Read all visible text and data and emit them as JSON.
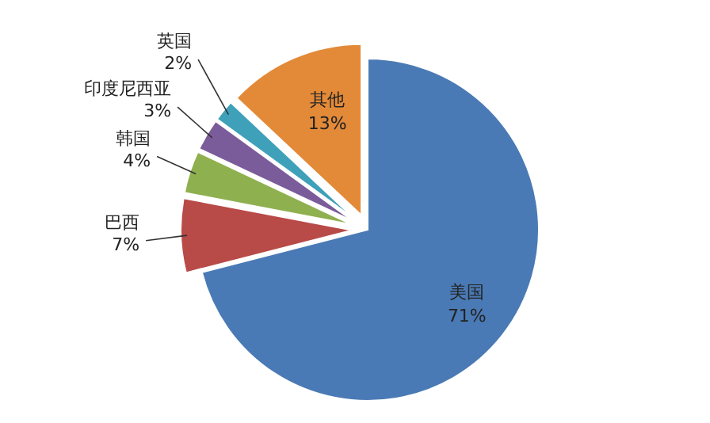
{
  "chart_data": {
    "type": "pie",
    "categories": [
      "美国",
      "巴西",
      "韩国",
      "印度尼西亚",
      "英国",
      "其他"
    ],
    "values": [
      71,
      7,
      4,
      3,
      2,
      13
    ],
    "value_labels": [
      "71%",
      "7%",
      "4%",
      "3%",
      "2%",
      "13%"
    ],
    "colors": [
      "#4a7ab5",
      "#b84a47",
      "#8fb04f",
      "#7a5c9a",
      "#3fa0b9",
      "#e38a39"
    ]
  }
}
